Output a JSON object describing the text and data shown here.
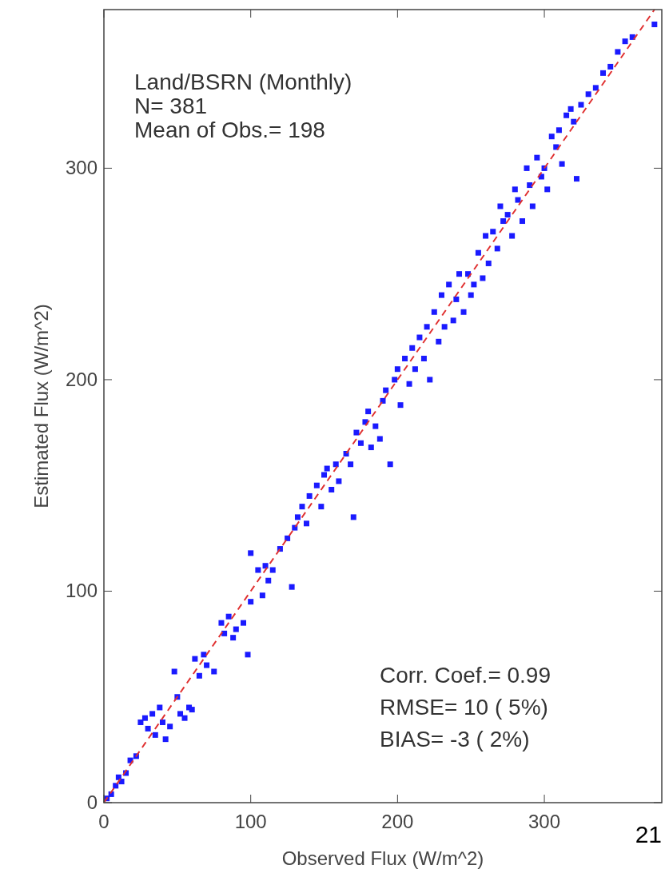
{
  "chart_data": {
    "type": "scatter",
    "xlabel": "Observed Flux (W/m^2)",
    "ylabel": "Estimated Flux (W/m^2)",
    "xlim": [
      0,
      380
    ],
    "ylim": [
      0,
      375
    ],
    "xticks": [
      0,
      100,
      200,
      300
    ],
    "yticks": [
      0,
      100,
      200,
      300
    ],
    "grid": false,
    "marker": "square",
    "annotations": [
      "Land/BSRN (Monthly)",
      "N= 381",
      "Mean of Obs.= 198",
      "Corr. Coef.= 0.99",
      "RMSE= 10 ( 5%)",
      "BIAS= -3 ( 2%)",
      "21"
    ],
    "series": [
      {
        "color": "#1a1aff",
        "x": [
          2,
          5,
          8,
          10,
          12,
          15,
          18,
          22,
          25,
          28,
          30,
          33,
          35,
          38,
          40,
          42,
          45,
          48,
          50,
          52,
          55,
          58,
          60,
          62,
          65,
          68,
          70,
          75,
          80,
          82,
          85,
          88,
          90,
          95,
          98,
          100,
          100,
          105,
          108,
          110,
          112,
          115,
          120,
          125,
          128,
          130,
          132,
          135,
          138,
          140,
          145,
          148,
          150,
          152,
          155,
          158,
          160,
          165,
          168,
          170,
          172,
          175,
          178,
          180,
          182,
          185,
          188,
          190,
          192,
          195,
          198,
          200,
          202,
          205,
          208,
          210,
          212,
          215,
          218,
          220,
          222,
          225,
          228,
          230,
          232,
          235,
          238,
          240,
          242,
          245,
          248,
          250,
          252,
          255,
          258,
          260,
          262,
          265,
          268,
          270,
          272,
          275,
          278,
          280,
          282,
          285,
          288,
          290,
          292,
          295,
          298,
          300,
          302,
          305,
          308,
          310,
          312,
          315,
          318,
          320,
          322,
          325,
          330,
          335,
          340,
          345,
          350,
          355,
          360,
          375
        ],
        "values": [
          2,
          4,
          8,
          12,
          10,
          14,
          20,
          22,
          38,
          40,
          35,
          42,
          32,
          45,
          38,
          30,
          36,
          62,
          50,
          42,
          40,
          45,
          44,
          68,
          60,
          70,
          65,
          62,
          85,
          80,
          88,
          78,
          82,
          85,
          70,
          118,
          95,
          110,
          98,
          112,
          105,
          110,
          120,
          125,
          102,
          130,
          135,
          140,
          132,
          145,
          150,
          140,
          155,
          158,
          148,
          160,
          152,
          165,
          160,
          135,
          175,
          170,
          180,
          185,
          168,
          178,
          172,
          190,
          195,
          160,
          200,
          205,
          188,
          210,
          198,
          215,
          205,
          220,
          210,
          225,
          200,
          232,
          218,
          240,
          225,
          245,
          228,
          238,
          250,
          232,
          250,
          240,
          245,
          260,
          248,
          268,
          255,
          270,
          262,
          282,
          275,
          278,
          268,
          290,
          285,
          275,
          300,
          292,
          282,
          305,
          296,
          300,
          290,
          315,
          310,
          318,
          302,
          325,
          328,
          322,
          295,
          330,
          335,
          338,
          345,
          348,
          355,
          360,
          362,
          368
        ]
      },
      {
        "type": "line",
        "color": "#e03030",
        "line_style": "dashed",
        "marker": "none",
        "x": [
          0,
          375
        ],
        "values": [
          0,
          375
        ]
      }
    ]
  }
}
